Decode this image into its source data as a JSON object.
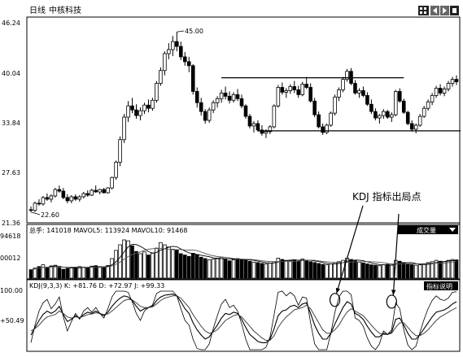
{
  "header": {
    "period": "日线",
    "stock_name": "中核科技",
    "toolbar_icons": [
      "grid-icon",
      "left-arrow-icon",
      "right-arrow-icon",
      "square-icon"
    ]
  },
  "chart_data": [
    {
      "type": "candlestick",
      "panel": "price",
      "yticks": [
        "46.24",
        "40.04",
        "33.84",
        "27.63",
        "21.36"
      ],
      "ylim": [
        21.36,
        46.24
      ],
      "annotations": [
        {
          "text": "45.00",
          "value": 45.0,
          "bar": 36
        },
        {
          "text": "22.60",
          "value": 22.6,
          "bar": 0
        },
        {
          "text": "KDJ 指标出局点"
        }
      ],
      "resistance_line": {
        "value": 39.3,
        "from_bar": 47,
        "to_bar": 92
      },
      "support_line": {
        "value": 32.7,
        "from_bar": 56,
        "to_bar": 106
      },
      "candles": [
        [
          22.9,
          23.3,
          22.6,
          22.8
        ],
        [
          22.8,
          23.9,
          22.6,
          23.7
        ],
        [
          23.7,
          24.2,
          23.4,
          23.6
        ],
        [
          23.6,
          24.6,
          23.4,
          24.4
        ],
        [
          24.4,
          24.9,
          24.0,
          24.2
        ],
        [
          24.2,
          24.8,
          23.8,
          24.6
        ],
        [
          24.6,
          25.6,
          24.4,
          25.4
        ],
        [
          25.4,
          25.9,
          25.0,
          25.2
        ],
        [
          25.2,
          25.6,
          24.2,
          24.4
        ],
        [
          24.4,
          24.8,
          23.7,
          24.0
        ],
        [
          24.0,
          24.7,
          23.7,
          24.5
        ],
        [
          24.5,
          24.8,
          24.0,
          24.2
        ],
        [
          24.2,
          24.7,
          23.9,
          24.5
        ],
        [
          24.5,
          25.1,
          24.3,
          24.9
        ],
        [
          24.9,
          25.3,
          24.5,
          24.7
        ],
        [
          24.7,
          25.5,
          24.6,
          25.3
        ],
        [
          25.3,
          25.9,
          25.0,
          25.1
        ],
        [
          25.1,
          25.5,
          24.8,
          25.4
        ],
        [
          25.4,
          25.6,
          24.9,
          25.0
        ],
        [
          25.0,
          25.7,
          24.9,
          25.6
        ],
        [
          25.6,
          27.0,
          25.4,
          26.9
        ],
        [
          26.9,
          29.0,
          26.6,
          28.8
        ],
        [
          28.8,
          32.0,
          28.3,
          31.6
        ],
        [
          31.6,
          34.8,
          31.2,
          34.4
        ],
        [
          34.4,
          36.4,
          33.8,
          35.8
        ],
        [
          35.8,
          36.8,
          34.9,
          35.3
        ],
        [
          35.3,
          36.0,
          34.2,
          34.6
        ],
        [
          34.6,
          35.6,
          34.0,
          35.2
        ],
        [
          35.2,
          36.2,
          34.8,
          35.9
        ],
        [
          35.9,
          36.6,
          35.0,
          35.5
        ],
        [
          35.5,
          36.8,
          35.2,
          36.5
        ],
        [
          36.5,
          38.9,
          36.2,
          38.6
        ],
        [
          38.6,
          40.6,
          38.3,
          40.2
        ],
        [
          40.2,
          42.6,
          39.6,
          42.3
        ],
        [
          42.3,
          43.6,
          41.6,
          42.8
        ],
        [
          42.8,
          44.5,
          42.0,
          43.8
        ],
        [
          43.8,
          45.0,
          42.6,
          43.2
        ],
        [
          43.2,
          43.8,
          41.5,
          41.9
        ],
        [
          41.9,
          42.5,
          40.8,
          41.3
        ],
        [
          41.3,
          41.9,
          40.0,
          40.8
        ],
        [
          40.8,
          41.0,
          37.2,
          37.6
        ],
        [
          37.6,
          38.1,
          35.6,
          36.2
        ],
        [
          36.2,
          36.8,
          34.6,
          35.1
        ],
        [
          35.1,
          35.4,
          33.6,
          34.0
        ],
        [
          34.0,
          35.6,
          33.7,
          35.3
        ],
        [
          35.3,
          36.5,
          34.9,
          36.2
        ],
        [
          36.2,
          37.0,
          35.6,
          36.7
        ],
        [
          36.7,
          37.8,
          36.2,
          37.4
        ],
        [
          37.4,
          38.2,
          36.6,
          37.0
        ],
        [
          37.0,
          37.6,
          36.1,
          36.5
        ],
        [
          36.5,
          37.5,
          36.2,
          37.2
        ],
        [
          37.2,
          37.9,
          36.4,
          36.7
        ],
        [
          36.7,
          37.2,
          35.5,
          35.8
        ],
        [
          35.8,
          36.0,
          34.2,
          34.5
        ],
        [
          34.5,
          34.8,
          33.0,
          33.3
        ],
        [
          33.3,
          33.9,
          32.5,
          33.6
        ],
        [
          33.6,
          34.0,
          32.6,
          32.8
        ],
        [
          32.8,
          33.4,
          32.1,
          32.4
        ],
        [
          32.4,
          32.9,
          31.8,
          32.6
        ],
        [
          32.6,
          33.4,
          32.3,
          33.2
        ],
        [
          33.2,
          36.0,
          33.0,
          35.8
        ],
        [
          35.8,
          38.4,
          35.6,
          38.1
        ],
        [
          38.1,
          38.7,
          37.2,
          37.5
        ],
        [
          37.5,
          38.0,
          36.8,
          37.7
        ],
        [
          37.7,
          38.5,
          37.3,
          38.2
        ],
        [
          38.2,
          38.9,
          37.4,
          37.8
        ],
        [
          37.8,
          38.3,
          36.8,
          37.2
        ],
        [
          37.2,
          38.8,
          37.0,
          38.5
        ],
        [
          38.5,
          39.4,
          37.9,
          38.1
        ],
        [
          38.1,
          38.6,
          36.2,
          36.4
        ],
        [
          36.4,
          36.8,
          34.4,
          34.7
        ],
        [
          34.7,
          35.1,
          33.0,
          33.2
        ],
        [
          33.2,
          33.6,
          32.2,
          32.5
        ],
        [
          32.5,
          33.6,
          32.3,
          33.4
        ],
        [
          33.4,
          35.1,
          33.2,
          34.9
        ],
        [
          34.9,
          37.2,
          34.6,
          36.9
        ],
        [
          36.9,
          38.1,
          36.4,
          37.8
        ],
        [
          37.8,
          39.4,
          37.5,
          39.1
        ],
        [
          39.1,
          40.4,
          38.8,
          40.1
        ],
        [
          40.1,
          40.5,
          38.4,
          38.6
        ],
        [
          38.6,
          39.0,
          37.2,
          37.4
        ],
        [
          37.4,
          38.0,
          36.8,
          37.7
        ],
        [
          37.7,
          38.2,
          36.9,
          37.1
        ],
        [
          37.1,
          37.5,
          35.8,
          36.0
        ],
        [
          36.0,
          36.6,
          34.8,
          35.1
        ],
        [
          35.1,
          35.5,
          34.0,
          34.3
        ],
        [
          34.3,
          34.8,
          33.6,
          34.6
        ],
        [
          34.6,
          35.4,
          34.2,
          35.1
        ],
        [
          35.1,
          35.3,
          34.2,
          34.4
        ],
        [
          34.4,
          35.0,
          33.8,
          34.7
        ],
        [
          34.7,
          37.8,
          34.5,
          37.6
        ],
        [
          37.6,
          38.0,
          36.2,
          36.4
        ],
        [
          36.4,
          36.7,
          34.8,
          35.0
        ],
        [
          35.0,
          35.2,
          33.4,
          33.6
        ],
        [
          33.6,
          34.0,
          32.6,
          32.9
        ],
        [
          32.9,
          33.6,
          32.4,
          33.4
        ],
        [
          33.4,
          34.8,
          33.2,
          34.5
        ],
        [
          34.5,
          35.8,
          34.3,
          35.5
        ],
        [
          35.5,
          36.6,
          35.2,
          36.3
        ],
        [
          36.3,
          37.4,
          35.9,
          37.1
        ],
        [
          37.1,
          38.3,
          36.8,
          38.0
        ],
        [
          38.0,
          38.5,
          37.1,
          37.4
        ],
        [
          37.4,
          38.2,
          37.0,
          37.9
        ],
        [
          37.9,
          38.9,
          37.6,
          38.6
        ],
        [
          38.6,
          39.4,
          38.2,
          39.1
        ],
        [
          39.1,
          39.6,
          38.4,
          38.8
        ]
      ]
    },
    {
      "type": "bar",
      "panel": "volume",
      "title": "总手: 141018 MAVOL5: 113924 MAVOL10: 91468",
      "yticks": [
        "94618",
        "00012"
      ],
      "button": "成交量",
      "values": [
        38,
        45,
        52,
        60,
        48,
        55,
        58,
        47,
        40,
        44,
        46,
        49,
        52,
        50,
        47,
        54,
        56,
        50,
        48,
        57,
        88,
        125,
        150,
        172,
        168,
        145,
        120,
        110,
        118,
        104,
        112,
        135,
        160,
        150,
        140,
        130,
        126,
        110,
        104,
        98,
        112,
        106,
        94,
        88,
        82,
        86,
        90,
        94,
        86,
        78,
        82,
        88,
        84,
        80,
        76,
        72,
        70,
        66,
        64,
        68,
        74,
        90,
        84,
        80,
        78,
        82,
        76,
        86,
        80,
        74,
        70,
        66,
        62,
        60,
        64,
        70,
        74,
        80,
        90,
        84,
        78,
        72,
        68,
        64,
        60,
        58,
        56,
        60,
        62,
        58,
        80,
        76,
        70,
        64,
        60,
        58,
        60,
        64,
        70,
        74,
        80,
        76,
        74,
        80,
        84,
        82
      ]
    },
    {
      "type": "line",
      "panel": "kdj",
      "title": "KDJ(9,3,3) K: +81.76 D: +72.97 J: +99.33",
      "yticks": [
        "100.00",
        "+50.49"
      ],
      "button": "指标说明",
      "series": [
        {
          "name": "K",
          "values": [
            25,
            38,
            50,
            60,
            66,
            62,
            66,
            74,
            60,
            48,
            52,
            58,
            54,
            60,
            64,
            62,
            66,
            62,
            58,
            64,
            74,
            82,
            88,
            92,
            90,
            84,
            74,
            66,
            70,
            72,
            74,
            84,
            90,
            93,
            94,
            95,
            92,
            82,
            70,
            62,
            46,
            34,
            25,
            18,
            22,
            32,
            42,
            54,
            62,
            60,
            64,
            62,
            52,
            38,
            26,
            20,
            14,
            12,
            12,
            18,
            36,
            58,
            66,
            68,
            74,
            76,
            72,
            78,
            80,
            62,
            42,
            28,
            18,
            18,
            28,
            44,
            58,
            72,
            82,
            78,
            62,
            58,
            52,
            40,
            30,
            22,
            22,
            28,
            26,
            30,
            52,
            54,
            42,
            28,
            18,
            18,
            26,
            36,
            46,
            56,
            64,
            66,
            68,
            72,
            78,
            82
          ]
        },
        {
          "name": "D",
          "values": [
            32,
            36,
            42,
            50,
            56,
            58,
            60,
            66,
            62,
            56,
            54,
            56,
            55,
            57,
            60,
            61,
            63,
            62,
            60,
            61,
            66,
            72,
            78,
            84,
            86,
            85,
            80,
            74,
            72,
            72,
            73,
            78,
            84,
            88,
            90,
            92,
            92,
            88,
            80,
            72,
            60,
            50,
            40,
            32,
            28,
            30,
            34,
            42,
            50,
            54,
            58,
            60,
            56,
            48,
            40,
            32,
            26,
            20,
            16,
            16,
            24,
            38,
            48,
            56,
            62,
            68,
            70,
            72,
            76,
            70,
            58,
            46,
            34,
            28,
            28,
            34,
            42,
            54,
            64,
            70,
            66,
            62,
            58,
            50,
            42,
            34,
            28,
            26,
            26,
            28,
            38,
            46,
            46,
            38,
            30,
            24,
            24,
            28,
            34,
            42,
            50,
            56,
            60,
            64,
            68,
            72
          ]
        },
        {
          "name": "J",
          "values": [
            12,
            42,
            66,
            80,
            86,
            70,
            78,
            90,
            56,
            32,
            48,
            62,
            52,
            66,
            72,
            64,
            72,
            62,
            54,
            70,
            90,
            100,
            100,
            100,
            98,
            82,
            62,
            50,
            66,
            72,
            76,
            96,
            100,
            100,
            100,
            100,
            92,
            70,
            50,
            42,
            18,
            2,
            0,
            0,
            10,
            36,
            58,
            78,
            86,
            72,
            76,
            66,
            44,
            18,
            0,
            0,
            0,
            0,
            4,
            22,
            60,
            98,
            100,
            92,
            98,
            92,
            76,
            90,
            88,
            46,
            10,
            0,
            0,
            0,
            28,
            64,
            90,
            100,
            100,
            94,
            54,
            50,
            40,
            20,
            6,
            0,
            10,
            32,
            26,
            34,
            80,
            70,
            34,
            8,
            0,
            6,
            30,
            52,
            70,
            84,
            92,
            86,
            84,
            88,
            98,
            99
          ]
        }
      ],
      "markers": [
        {
          "bar": 75,
          "value": 85
        },
        {
          "bar": 89,
          "value": 82
        }
      ]
    }
  ]
}
